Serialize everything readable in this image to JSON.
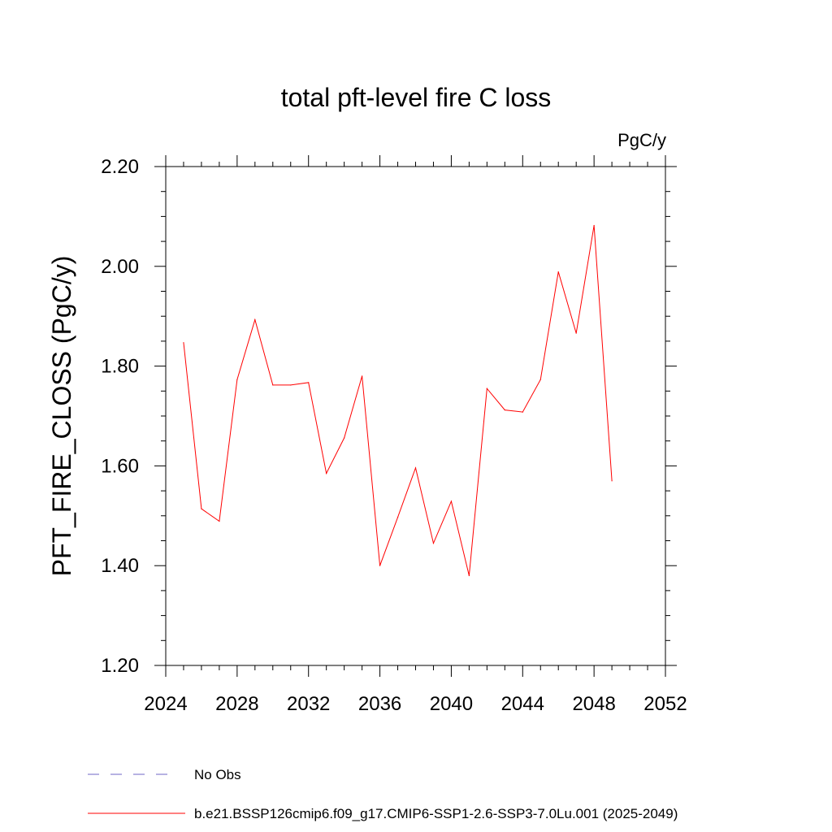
{
  "chart_data": {
    "type": "line",
    "title": "total pft-level fire C loss",
    "units": "PgC/y",
    "ylabel": "PFT_FIRE_CLOSS  (PgC/y)",
    "xlabel": "",
    "xlim": [
      2024,
      2052
    ],
    "ylim": [
      1.2,
      2.2
    ],
    "x_major_ticks": [
      2024,
      2028,
      2032,
      2036,
      2040,
      2044,
      2048,
      2052
    ],
    "x_tick_labels": [
      "2024",
      "2028",
      "2032",
      "2036",
      "2040",
      "2044",
      "2048",
      "2052"
    ],
    "y_major_ticks": [
      1.2,
      1.4,
      1.6,
      1.8,
      2.0,
      2.2
    ],
    "y_tick_labels": [
      "1.20",
      "1.40",
      "1.60",
      "1.80",
      "2.00",
      "2.20"
    ],
    "grid": false,
    "series": [
      {
        "name": "b.e21.BSSP126cmip6.f09_g17.CMIP6-SSP1-2.6-SSP3-7.0Lu.001 (2025-2049)",
        "color": "#ff0000",
        "x": [
          2025,
          2026,
          2027,
          2028,
          2029,
          2030,
          2031,
          2032,
          2033,
          2034,
          2035,
          2036,
          2037,
          2038,
          2039,
          2040,
          2041,
          2042,
          2043,
          2044,
          2045,
          2046,
          2047,
          2048,
          2049
        ],
        "values": [
          1.847,
          1.514,
          1.489,
          1.773,
          1.893,
          1.762,
          1.762,
          1.767,
          1.585,
          1.656,
          1.78,
          1.4,
          1.497,
          1.596,
          1.445,
          1.529,
          1.38,
          1.755,
          1.712,
          1.708,
          1.773,
          1.989,
          1.866,
          2.082,
          1.57
        ]
      }
    ],
    "legend": [
      {
        "label": "No Obs",
        "style": "dashed",
        "color": "#6f66c4"
      },
      {
        "label": "b.e21.BSSP126cmip6.f09_g17.CMIP6-SSP1-2.6-SSP3-7.0Lu.001 (2025-2049)",
        "style": "solid",
        "color": "#ff0000"
      }
    ],
    "legend_position": "bottom-left"
  }
}
